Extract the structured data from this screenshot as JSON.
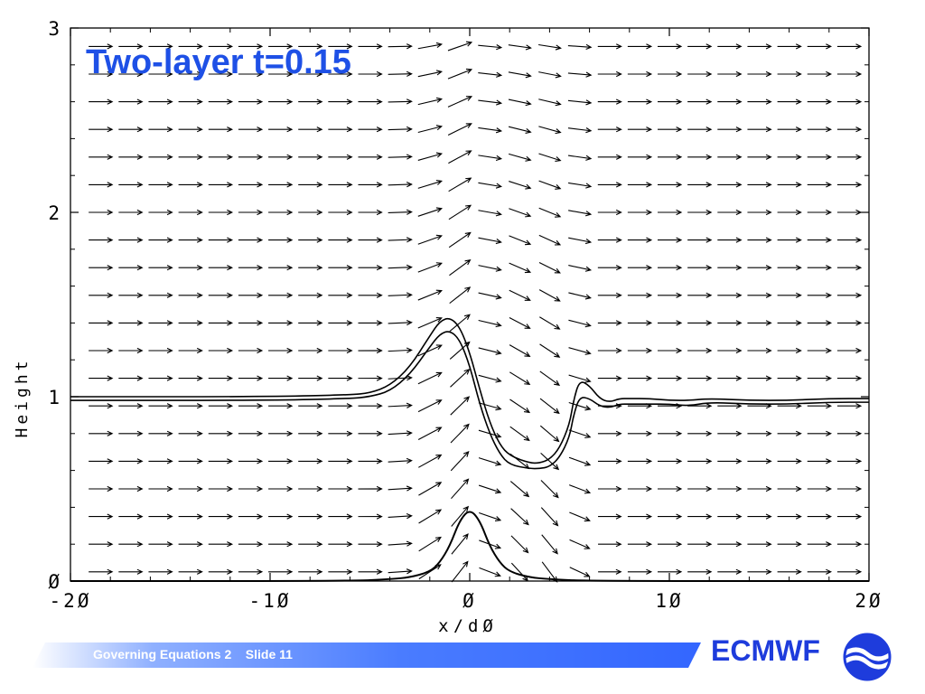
{
  "slide": {
    "title": "Two-layer t=0.15",
    "footer": "Governing Equations 2    Slide 11",
    "logo_text": "ECMWF"
  },
  "colors": {
    "title": "#1e50e6",
    "footer_band": "#3366ff",
    "logo": "#1e3cdc",
    "plot_lines": "#000000"
  },
  "chart_data": {
    "type": "line",
    "xlabel": "x/dØ",
    "ylabel": "Height",
    "xlim": [
      -20,
      20
    ],
    "ylim": [
      0,
      3
    ],
    "xticks": [
      "-2Ø",
      "-1Ø",
      "Ø",
      "1Ø",
      "2Ø"
    ],
    "xtick_values": [
      -20,
      -10,
      0,
      10,
      20
    ],
    "yticks": [
      "Ø",
      "1",
      "2",
      "3"
    ],
    "ytick_values": [
      0,
      1,
      2,
      3
    ],
    "series": [
      {
        "role": "upper-interface",
        "x": [
          -20,
          -10,
          -6,
          -5,
          -4,
          -3,
          -2,
          -1.5,
          -1,
          -0.5,
          0,
          0.5,
          1,
          1.5,
          2,
          3,
          3.5,
          4,
          4.5,
          5,
          5.2,
          5.5,
          6,
          6.5,
          7,
          7.5,
          8,
          9,
          10,
          11,
          12,
          14,
          16,
          18,
          20
        ],
        "y": [
          1.0,
          1.0,
          1.01,
          1.02,
          1.06,
          1.16,
          1.33,
          1.41,
          1.43,
          1.38,
          1.24,
          1.04,
          0.86,
          0.74,
          0.68,
          0.64,
          0.64,
          0.66,
          0.72,
          0.85,
          0.98,
          1.09,
          1.06,
          0.99,
          0.97,
          0.99,
          0.99,
          0.99,
          0.98,
          0.98,
          0.99,
          0.98,
          0.98,
          0.99,
          0.99
        ]
      },
      {
        "role": "lower-interface",
        "x": [
          -20,
          -10,
          -6,
          -5,
          -4,
          -3,
          -2,
          -1.5,
          -1,
          -0.5,
          0,
          0.5,
          1,
          1.5,
          2,
          3,
          3.5,
          4,
          4.5,
          5,
          5.2,
          5.5,
          6,
          6.5,
          7,
          7.5,
          8,
          9,
          10,
          11,
          12,
          14,
          16,
          18,
          20
        ],
        "y": [
          0.98,
          0.98,
          0.99,
          1.0,
          1.03,
          1.12,
          1.27,
          1.34,
          1.36,
          1.31,
          1.17,
          0.96,
          0.8,
          0.69,
          0.63,
          0.61,
          0.61,
          0.62,
          0.67,
          0.78,
          0.9,
          1.0,
          0.99,
          0.95,
          0.94,
          0.96,
          0.96,
          0.96,
          0.96,
          0.95,
          0.97,
          0.96,
          0.96,
          0.97,
          0.97
        ]
      },
      {
        "role": "orography",
        "x": [
          -20,
          -6,
          -4,
          -3,
          -2,
          -1.5,
          -1,
          -0.5,
          0,
          0.5,
          1,
          1.5,
          2,
          3,
          4,
          6,
          20
        ],
        "y": [
          0,
          0,
          0.01,
          0.02,
          0.05,
          0.1,
          0.19,
          0.33,
          0.39,
          0.33,
          0.19,
          0.1,
          0.05,
          0.02,
          0.01,
          0,
          0
        ]
      }
    ],
    "vector_field": {
      "rows_y": [
        0.05,
        0.2,
        0.35,
        0.5,
        0.65,
        0.8,
        0.95,
        1.1,
        1.25,
        1.4,
        1.55,
        1.7,
        1.85,
        2.0,
        2.15,
        2.3,
        2.45,
        2.6,
        2.75,
        2.9
      ],
      "cols_x": [
        -20,
        -18.5,
        -17,
        -15.5,
        -14,
        -12.5,
        -11,
        -9.5,
        -8,
        -6.5,
        -5,
        -3.5,
        -2,
        -0.5,
        1,
        2.5,
        4,
        5.5,
        7,
        8.5,
        10,
        11.5,
        13,
        14.5,
        16,
        17.5,
        19,
        20
      ],
      "background_flow": [
        1,
        0
      ]
    }
  }
}
